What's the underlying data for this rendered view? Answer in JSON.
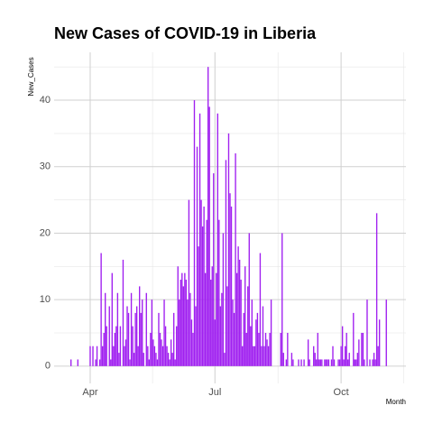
{
  "chart_data": {
    "type": "bar",
    "title": "New Cases of COVID-19 in Liberia",
    "x_label": "Month",
    "y_label": "New_Cases",
    "color": "#a020f0",
    "x": [
      78,
      79,
      80,
      81,
      82,
      83,
      84,
      85,
      86,
      87,
      88,
      89,
      90,
      91,
      92,
      93,
      94,
      95,
      96,
      97,
      98,
      99,
      100,
      101,
      102,
      103,
      104,
      105,
      106,
      107,
      108,
      109,
      110,
      111,
      112,
      113,
      114,
      115,
      116,
      117,
      118,
      119,
      120,
      121,
      122,
      123,
      124,
      125,
      126,
      127,
      128,
      129,
      130,
      131,
      132,
      133,
      134,
      135,
      136,
      137,
      138,
      139,
      140,
      141,
      142,
      143,
      144,
      145,
      146,
      147,
      148,
      149,
      150,
      151,
      152,
      153,
      154,
      155,
      156,
      157,
      158,
      159,
      160,
      161,
      162,
      163,
      164,
      165,
      166,
      167,
      168,
      169,
      170,
      171,
      172,
      173,
      174,
      175,
      176,
      177,
      178,
      179,
      180,
      181,
      182,
      183,
      184,
      185,
      186,
      187,
      188,
      189,
      190,
      191,
      192,
      193,
      194,
      195,
      196,
      197,
      198,
      199,
      200,
      201,
      202,
      203,
      204,
      205,
      206,
      207,
      208,
      209,
      210,
      211,
      212,
      213,
      214,
      215,
      216,
      217,
      218,
      219,
      220,
      221,
      222,
      223,
      224,
      225,
      226,
      227,
      228,
      229,
      230,
      231,
      232,
      233,
      234,
      235,
      236,
      237,
      238,
      239,
      240,
      241,
      242,
      243,
      244,
      245,
      246,
      247,
      248,
      249,
      250,
      251,
      252,
      253,
      254,
      255,
      256,
      257,
      258,
      259,
      260,
      261,
      262,
      263,
      264,
      265,
      266,
      267,
      268,
      269,
      270,
      271,
      272,
      273,
      274,
      275,
      276,
      277,
      278,
      279,
      280,
      281,
      282,
      283,
      284,
      285,
      286,
      287,
      288,
      289,
      290,
      291,
      292,
      293,
      294,
      295,
      296,
      297,
      298,
      299,
      300,
      301,
      302,
      303,
      304,
      305,
      306,
      307,
      308,
      309
    ],
    "values": [
      1,
      0,
      0,
      0,
      0,
      1,
      0,
      0,
      0,
      0,
      0,
      0,
      0,
      0,
      3,
      0,
      3,
      0,
      1,
      3,
      0,
      1,
      17,
      3,
      5,
      11,
      6,
      0,
      9,
      1,
      14,
      3,
      5,
      6,
      11,
      2,
      6,
      0,
      16,
      3,
      4,
      9,
      8,
      1,
      11,
      6,
      2,
      8,
      9,
      3,
      12,
      8,
      10,
      2,
      0,
      11,
      3,
      1,
      5,
      10,
      4,
      3,
      2,
      1,
      8,
      5,
      4,
      3,
      10,
      6,
      3,
      2,
      1,
      4,
      2,
      8,
      1,
      6,
      15,
      10,
      13,
      14,
      12,
      14,
      13,
      10,
      25,
      11,
      7,
      5,
      40,
      9,
      33,
      18,
      38,
      25,
      21,
      24,
      14,
      22,
      45,
      39,
      13,
      15,
      29,
      7,
      14,
      38,
      22,
      9,
      11,
      20,
      2,
      31,
      12,
      35,
      26,
      24,
      10,
      8,
      32,
      14,
      18,
      16,
      13,
      3,
      8,
      15,
      5,
      12,
      20,
      6,
      10,
      3,
      3,
      7,
      8,
      5,
      17,
      3,
      9,
      3,
      5,
      4,
      3,
      5,
      10,
      0,
      0,
      0,
      0,
      0,
      0,
      5,
      20,
      2,
      0,
      1,
      5,
      0,
      0,
      2,
      1,
      0,
      0,
      0,
      1,
      0,
      1,
      0,
      1,
      0,
      0,
      4,
      1,
      0,
      0,
      3,
      2,
      1,
      5,
      1,
      1,
      1,
      0,
      1,
      1,
      1,
      1,
      0,
      1,
      3,
      1,
      0,
      0,
      1,
      1,
      3,
      6,
      1,
      3,
      5,
      1,
      2,
      0,
      0,
      8,
      1,
      1,
      2,
      4,
      0,
      5,
      5,
      1,
      0,
      10,
      0,
      1,
      0,
      1,
      2,
      1,
      23,
      3,
      7,
      0,
      0,
      0,
      0,
      10,
      0
    ],
    "xlim": [
      65.7,
      322.3
    ],
    "xticks": [
      {
        "value": 92,
        "label": "Apr"
      },
      {
        "value": 183,
        "label": "Jul"
      },
      {
        "value": 275,
        "label": "Oct"
      }
    ],
    "xminorticks": [
      137.5,
      229,
      320.5
    ],
    "ylim": [
      -2.6,
      47.2
    ],
    "yticks": [
      0,
      10,
      20,
      30,
      40
    ],
    "yminorticks": [
      5,
      15,
      25,
      35,
      45
    ],
    "grid": true
  }
}
